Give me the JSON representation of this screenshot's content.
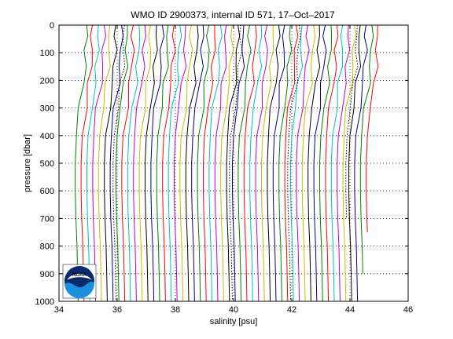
{
  "chart_data": {
    "type": "line",
    "title": "WMO ID 2900373, internal ID 571, 17–Oct–2017",
    "xlabel": "salinity [psu]",
    "ylabel": "pressure [dbar]",
    "xlim": [
      34,
      46
    ],
    "ylim": [
      0,
      1000
    ],
    "y_reversed": true,
    "grid": "dotted",
    "xticks": [
      "34",
      "36",
      "38",
      "40",
      "42",
      "44",
      "46"
    ],
    "yticks": [
      "0",
      "100",
      "200",
      "300",
      "400",
      "500",
      "600",
      "700",
      "800",
      "900",
      "1000"
    ],
    "xtick_values": [
      34,
      36,
      38,
      40,
      42,
      44,
      46
    ],
    "ytick_values": [
      0,
      100,
      200,
      300,
      400,
      500,
      600,
      700,
      800,
      900,
      1000
    ],
    "profile_offset_step_psu": 0.2,
    "colors": [
      "#00007f",
      "#007f00",
      "#ff0000",
      "#00bfbf",
      "#bf00bf",
      "#bfbf00",
      "#000000"
    ],
    "profile_shape": {
      "pressure": [
        0,
        40,
        90,
        150,
        210,
        300,
        400,
        500,
        600,
        700,
        800,
        900,
        1000
      ],
      "salinity": [
        34.95,
        34.94,
        34.93,
        34.9,
        34.84,
        34.72,
        34.6,
        34.56,
        34.56,
        34.58,
        34.62,
        34.64,
        34.66
      ]
    },
    "profiles": [
      {
        "offset": 0.0,
        "color": "#007f00"
      },
      {
        "offset": 0.2,
        "color": "#ff0000"
      },
      {
        "offset": 0.4,
        "color": "#00bfbf"
      },
      {
        "offset": 0.6,
        "color": "#bf00bf"
      },
      {
        "offset": 0.8,
        "color": "#bfbf00"
      },
      {
        "offset": 1.0,
        "color": "#000000"
      },
      {
        "offset": 1.2,
        "color": "#00007f"
      },
      {
        "offset": 1.4,
        "color": "#007f00"
      },
      {
        "offset": 1.6,
        "color": "#ff0000"
      },
      {
        "offset": 1.8,
        "color": "#00bfbf"
      },
      {
        "offset": 2.0,
        "color": "#bf00bf"
      },
      {
        "offset": 2.2,
        "color": "#bfbf00"
      },
      {
        "offset": 2.4,
        "color": "#000000"
      },
      {
        "offset": 2.6,
        "color": "#00007f"
      },
      {
        "offset": 2.8,
        "color": "#007f00"
      },
      {
        "offset": 3.0,
        "color": "#ff0000"
      },
      {
        "offset": 3.2,
        "color": "#00bfbf"
      },
      {
        "offset": 3.4,
        "color": "#bf00bf"
      },
      {
        "offset": 3.6,
        "color": "#bfbf00"
      },
      {
        "offset": 3.8,
        "color": "#000000"
      },
      {
        "offset": 4.0,
        "color": "#00007f"
      },
      {
        "offset": 4.2,
        "color": "#007f00"
      },
      {
        "offset": 4.4,
        "color": "#ff0000"
      },
      {
        "offset": 4.6,
        "color": "#00bfbf"
      },
      {
        "offset": 4.8,
        "color": "#bf00bf"
      },
      {
        "offset": 5.0,
        "color": "#bfbf00"
      },
      {
        "offset": 5.2,
        "color": "#000000"
      },
      {
        "offset": 5.4,
        "color": "#00007f"
      },
      {
        "offset": 5.6,
        "color": "#007f00"
      },
      {
        "offset": 5.8,
        "color": "#ff0000"
      },
      {
        "offset": 6.0,
        "color": "#00bfbf"
      },
      {
        "offset": 6.2,
        "color": "#bf00bf"
      },
      {
        "offset": 6.4,
        "color": "#bfbf00"
      },
      {
        "offset": 6.6,
        "color": "#000000"
      },
      {
        "offset": 6.8,
        "color": "#00007f"
      },
      {
        "offset": 7.0,
        "color": "#007f00"
      },
      {
        "offset": 7.2,
        "color": "#ff0000"
      },
      {
        "offset": 7.4,
        "color": "#00bfbf"
      },
      {
        "offset": 7.6,
        "color": "#bf00bf"
      },
      {
        "offset": 7.8,
        "color": "#bfbf00"
      },
      {
        "offset": 8.0,
        "color": "#000000"
      },
      {
        "offset": 8.2,
        "color": "#00007f"
      },
      {
        "offset": 8.4,
        "color": "#007f00"
      },
      {
        "offset": 8.6,
        "color": "#ff0000"
      },
      {
        "offset": 8.8,
        "color": "#00bfbf"
      },
      {
        "offset": 9.0,
        "color": "#bf00bf"
      },
      {
        "offset": 9.2,
        "color": "#bfbf00"
      },
      {
        "offset": 9.4,
        "color": "#000000"
      },
      {
        "offset": 9.6,
        "color": "#00007f"
      },
      {
        "offset": 9.8,
        "color": "#007f00",
        "max_pressure": 900
      },
      {
        "offset": 10.0,
        "color": "#ff0000",
        "max_pressure": 750
      }
    ],
    "dotted_reference_profiles": [
      {
        "offset": 1.3,
        "color": "#000000"
      },
      {
        "offset": 5.3,
        "color": "#000000"
      },
      {
        "offset": 7.3,
        "color": "#000000"
      },
      {
        "offset": 9.3,
        "color": "#000000",
        "max_pressure": 700
      }
    ]
  },
  "logo": {
    "label": "NOAA",
    "icon": "noaa-logo-icon",
    "colors": {
      "sky": "#0a2a6e",
      "wave": "#1a8fe0",
      "white": "#ffffff"
    }
  }
}
